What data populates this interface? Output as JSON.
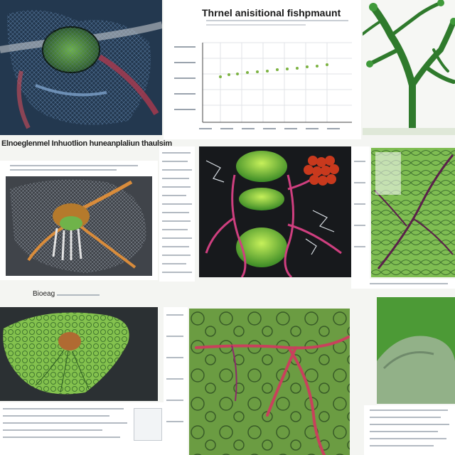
{
  "collage": {
    "chart_title": "Thrnel anisitional fishpmaunt",
    "chart_subtitle": "",
    "caption_left_mid": "Elnoeglenmel Inhuotlion huneanplaliun thaulsim",
    "caption_left_bottom": "Bioeag",
    "colors": {
      "page_bg": "#f4f5f2",
      "green": "#5fa53a",
      "dark": "#1f2d36",
      "accent_red": "#c8415c",
      "accent_blue": "#9ec7e8"
    },
    "icons": [
      "tissue-3d-render",
      "vein-network-render",
      "cell-anatomy-render",
      "leaf-cross-section-render"
    ]
  }
}
